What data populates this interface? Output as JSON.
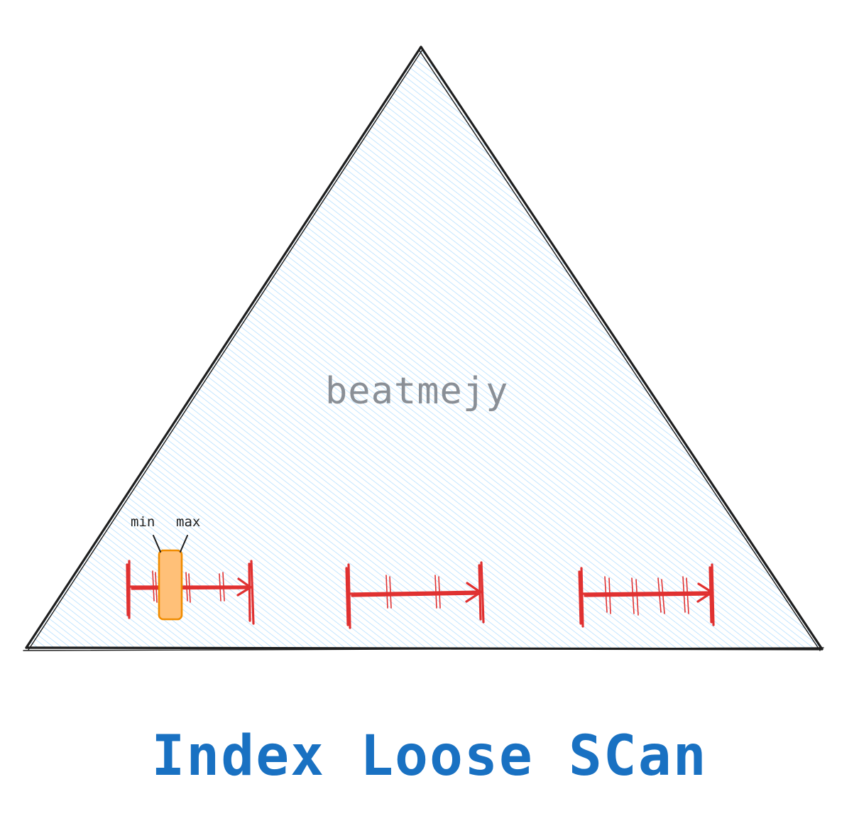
{
  "diagram": {
    "watermark": "beatmejy",
    "label_min": "min",
    "label_max": "max",
    "title": "Index Loose SCan"
  },
  "colors": {
    "triangle_outline": "#1e1e1e",
    "hatch": "#a5d8ff",
    "ranges": "#e03131",
    "highlight_fill": "#ffc078",
    "highlight_stroke": "#f08c00",
    "title": "#1971c2",
    "watermark": "#8a8f96"
  }
}
